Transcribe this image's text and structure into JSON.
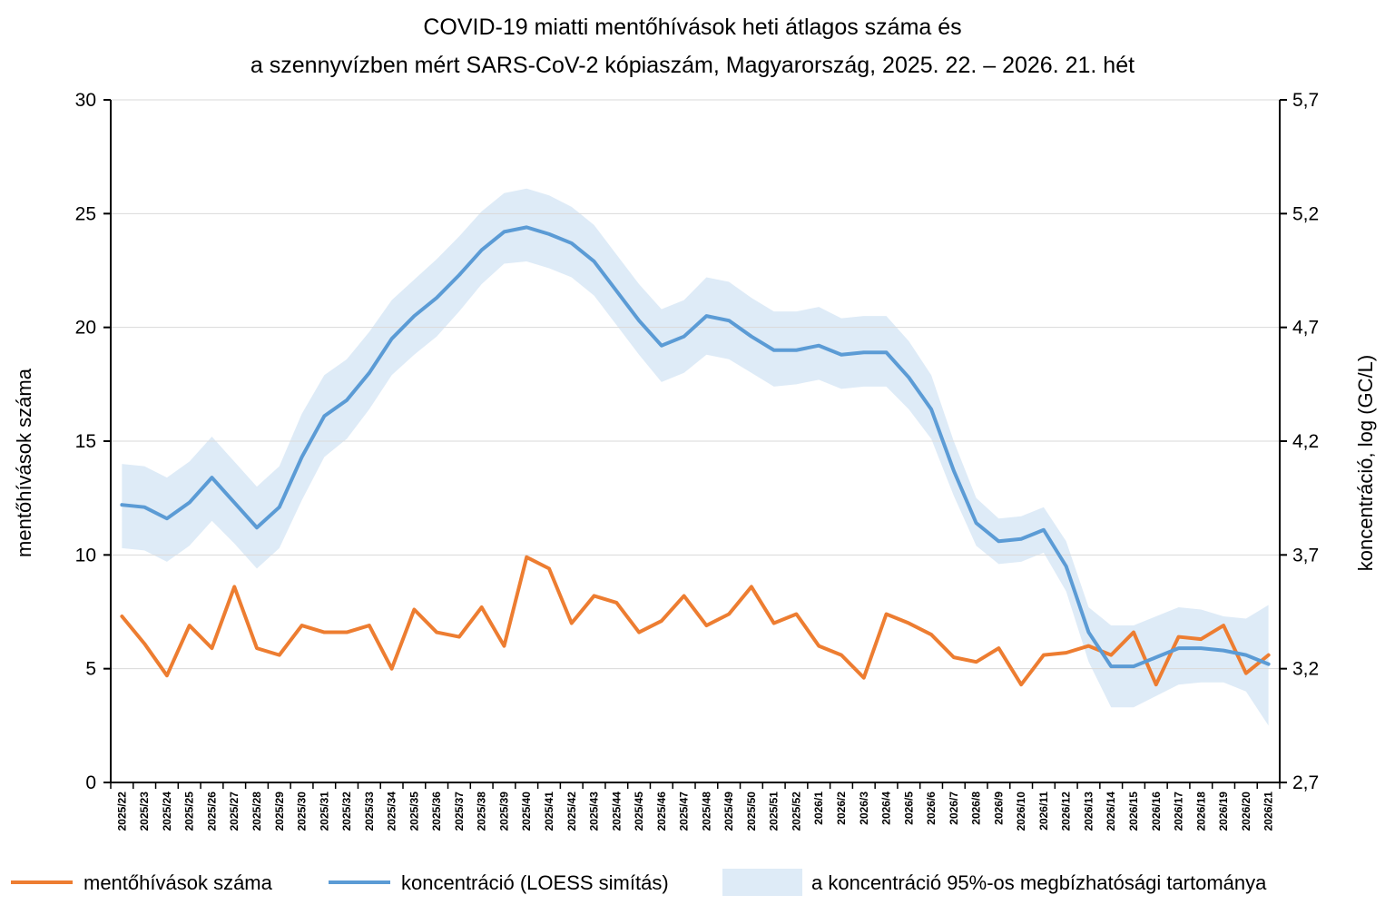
{
  "chart_data": {
    "type": "line",
    "title": [
      "COVID-19 miatti mentőhívások heti átlagos száma és",
      "a szennyvízben mért SARS-CoV-2 kópiaszám, Magyarország, 2025. 22. – 2026. 21. hét"
    ],
    "ylabel_left": "mentőhívások száma",
    "ylabel_right": "koncentráció, log (GC/L)",
    "ylim_left": [
      0,
      30
    ],
    "ylim_right": [
      2.7,
      5.7
    ],
    "yticks_left": [
      "0",
      "5",
      "10",
      "15",
      "20",
      "25",
      "30"
    ],
    "yticks_right": [
      "2,7",
      "3,2",
      "3,7",
      "4,2",
      "4,7",
      "5,2",
      "5,7"
    ],
    "grid": true,
    "legend_position": "bottom",
    "categories": [
      "2025/22",
      "2025/23",
      "2025/24",
      "2025/25",
      "2025/26",
      "2025/27",
      "2025/28",
      "2025/29",
      "2025/30",
      "2025/31",
      "2025/32",
      "2025/33",
      "2025/34",
      "2025/35",
      "2025/36",
      "2025/37",
      "2025/38",
      "2025/39",
      "2025/40",
      "2025/41",
      "2025/42",
      "2025/43",
      "2025/44",
      "2025/45",
      "2025/46",
      "2025/47",
      "2025/48",
      "2025/49",
      "2025/50",
      "2025/51",
      "2025/52",
      "2026/1",
      "2026/2",
      "2026/3",
      "2026/4",
      "2026/5",
      "2026/6",
      "2026/7",
      "2026/8",
      "2026/9",
      "2026/10",
      "2026/11",
      "2026/12",
      "2026/13",
      "2026/14",
      "2026/15",
      "2026/16",
      "2026/17",
      "2026/18",
      "2026/19",
      "2026/20",
      "2026/21"
    ],
    "series": [
      {
        "name": "mentőhívások száma",
        "axis": "left",
        "color": "#ED7D31",
        "values": [
          7.3,
          6.1,
          4.7,
          6.9,
          5.9,
          8.6,
          5.9,
          5.6,
          6.9,
          6.6,
          6.6,
          6.9,
          5.0,
          7.6,
          6.6,
          6.4,
          7.7,
          6.0,
          9.9,
          9.4,
          7.0,
          8.2,
          7.9,
          6.6,
          7.1,
          8.2,
          6.9,
          7.4,
          8.6,
          7.0,
          7.4,
          6.0,
          5.6,
          4.6,
          7.4,
          7.0,
          6.5,
          5.5,
          5.3,
          5.9,
          4.3,
          5.6,
          5.7,
          6.0,
          5.6,
          6.6,
          4.3,
          6.4,
          6.3,
          6.9,
          4.8,
          5.6
        ]
      },
      {
        "name": "koncentráció (LOESS simítás)",
        "axis": "right",
        "color": "#5B9BD5",
        "values": [
          3.92,
          3.91,
          3.86,
          3.93,
          4.04,
          3.93,
          3.82,
          3.91,
          4.13,
          4.31,
          4.38,
          4.5,
          4.65,
          4.75,
          4.83,
          4.93,
          5.04,
          5.12,
          5.14,
          5.11,
          5.07,
          4.99,
          4.86,
          4.73,
          4.62,
          4.66,
          4.75,
          4.73,
          4.66,
          4.6,
          4.6,
          4.62,
          4.58,
          4.59,
          4.59,
          4.48,
          4.34,
          4.07,
          3.84,
          3.76,
          3.77,
          3.81,
          3.65,
          3.36,
          3.21,
          3.21,
          3.25,
          3.29,
          3.29,
          3.28,
          3.26,
          3.22
        ]
      }
    ],
    "band": {
      "name": "a koncentráció 95%-os megbízhatósági tartománya",
      "axis": "right",
      "color": "#DEEBF7",
      "lower": [
        3.73,
        3.72,
        3.67,
        3.74,
        3.85,
        3.75,
        3.64,
        3.73,
        3.94,
        4.13,
        4.21,
        4.34,
        4.49,
        4.58,
        4.66,
        4.77,
        4.89,
        4.98,
        4.99,
        4.96,
        4.92,
        4.84,
        4.71,
        4.58,
        4.46,
        4.5,
        4.58,
        4.56,
        4.5,
        4.44,
        4.45,
        4.47,
        4.43,
        4.44,
        4.44,
        4.34,
        4.21,
        3.96,
        3.74,
        3.66,
        3.67,
        3.71,
        3.54,
        3.23,
        3.03,
        3.03,
        3.08,
        3.13,
        3.14,
        3.14,
        3.1,
        2.95
      ],
      "upper": [
        4.1,
        4.09,
        4.04,
        4.11,
        4.22,
        4.11,
        4.0,
        4.09,
        4.32,
        4.49,
        4.56,
        4.68,
        4.82,
        4.91,
        5.0,
        5.1,
        5.21,
        5.29,
        5.31,
        5.28,
        5.23,
        5.15,
        5.02,
        4.89,
        4.78,
        4.82,
        4.92,
        4.9,
        4.83,
        4.77,
        4.77,
        4.79,
        4.74,
        4.75,
        4.75,
        4.64,
        4.49,
        4.2,
        3.95,
        3.86,
        3.87,
        3.91,
        3.76,
        3.47,
        3.39,
        3.39,
        3.43,
        3.47,
        3.46,
        3.43,
        3.42,
        3.48
      ]
    }
  }
}
